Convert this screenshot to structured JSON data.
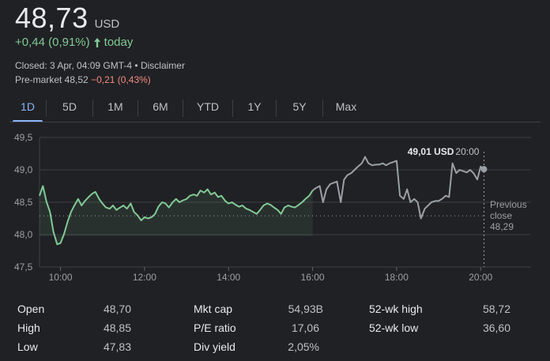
{
  "quote": {
    "price": "48,73",
    "currency": "USD",
    "change": "+0,44 (0,91%)",
    "change_period": "today",
    "closed_text": "Closed: 3 Apr, 04:09 GMT-4 • Disclaimer",
    "premarket_label": "Pre-market 48,52",
    "premarket_change": "−0,21 (0,43%)"
  },
  "tabs": [
    {
      "label": "1D",
      "active": true
    },
    {
      "label": "5D",
      "active": false
    },
    {
      "label": "1M",
      "active": false
    },
    {
      "label": "6M",
      "active": false
    },
    {
      "label": "YTD",
      "active": false
    },
    {
      "label": "1Y",
      "active": false
    },
    {
      "label": "5Y",
      "active": false
    },
    {
      "label": "Max",
      "active": false
    }
  ],
  "tooltip": {
    "value": "49,01 USD",
    "time": "20:00"
  },
  "previous_close": {
    "line1": "Previous",
    "line2": "close",
    "value": "48,29"
  },
  "colors": {
    "up": "#81c995",
    "down": "#f28b82",
    "accent": "#8ab4f8",
    "after_hours": "#9aa0a6"
  },
  "chart_data": {
    "type": "line",
    "ylim": [
      47.5,
      49.5
    ],
    "yticks": [
      "49,5",
      "49,0",
      "48,5",
      "48,0",
      "47,5"
    ],
    "ytick_values": [
      49.5,
      49.0,
      48.5,
      48.0,
      47.5
    ],
    "xticks": [
      "10:00",
      "12:00",
      "14:00",
      "16:00",
      "18:00",
      "20:00"
    ],
    "xtick_values": [
      10,
      12,
      14,
      16,
      18,
      20
    ],
    "xlim": [
      9.5,
      21.2
    ],
    "previous_close": 48.29,
    "series": [
      {
        "segment": "regular",
        "points": [
          [
            9.5,
            48.6
          ],
          [
            9.58,
            48.75
          ],
          [
            9.67,
            48.5
          ],
          [
            9.75,
            48.35
          ],
          [
            9.83,
            48.05
          ],
          [
            9.92,
            47.85
          ],
          [
            10.0,
            47.87
          ],
          [
            10.08,
            48.0
          ],
          [
            10.17,
            48.2
          ],
          [
            10.25,
            48.35
          ],
          [
            10.33,
            48.45
          ],
          [
            10.42,
            48.55
          ],
          [
            10.5,
            48.45
          ],
          [
            10.58,
            48.52
          ],
          [
            10.67,
            48.58
          ],
          [
            10.75,
            48.63
          ],
          [
            10.83,
            48.66
          ],
          [
            10.92,
            48.55
          ],
          [
            11.0,
            48.48
          ],
          [
            11.08,
            48.42
          ],
          [
            11.17,
            48.4
          ],
          [
            11.25,
            48.45
          ],
          [
            11.33,
            48.38
          ],
          [
            11.42,
            48.42
          ],
          [
            11.5,
            48.45
          ],
          [
            11.58,
            48.4
          ],
          [
            11.67,
            48.48
          ],
          [
            11.75,
            48.35
          ],
          [
            11.83,
            48.3
          ],
          [
            11.92,
            48.22
          ],
          [
            12.0,
            48.27
          ],
          [
            12.08,
            48.25
          ],
          [
            12.17,
            48.27
          ],
          [
            12.25,
            48.32
          ],
          [
            12.33,
            48.43
          ],
          [
            12.42,
            48.5
          ],
          [
            12.5,
            48.48
          ],
          [
            12.58,
            48.42
          ],
          [
            12.67,
            48.5
          ],
          [
            12.75,
            48.55
          ],
          [
            12.83,
            48.5
          ],
          [
            12.92,
            48.53
          ],
          [
            13.0,
            48.55
          ],
          [
            13.08,
            48.6
          ],
          [
            13.17,
            48.62
          ],
          [
            13.25,
            48.6
          ],
          [
            13.33,
            48.68
          ],
          [
            13.42,
            48.65
          ],
          [
            13.5,
            48.7
          ],
          [
            13.58,
            48.62
          ],
          [
            13.67,
            48.65
          ],
          [
            13.75,
            48.58
          ],
          [
            13.83,
            48.6
          ],
          [
            13.92,
            48.52
          ],
          [
            14.0,
            48.48
          ],
          [
            14.08,
            48.5
          ],
          [
            14.17,
            48.46
          ],
          [
            14.25,
            48.43
          ],
          [
            14.33,
            48.45
          ],
          [
            14.42,
            48.4
          ],
          [
            14.5,
            48.38
          ],
          [
            14.58,
            48.35
          ],
          [
            14.67,
            48.32
          ],
          [
            14.75,
            48.38
          ],
          [
            14.83,
            48.45
          ],
          [
            14.92,
            48.48
          ],
          [
            15.0,
            48.46
          ],
          [
            15.08,
            48.42
          ],
          [
            15.17,
            48.38
          ],
          [
            15.25,
            48.32
          ],
          [
            15.33,
            48.42
          ],
          [
            15.42,
            48.45
          ],
          [
            15.5,
            48.43
          ],
          [
            15.58,
            48.42
          ],
          [
            15.67,
            48.46
          ],
          [
            15.75,
            48.5
          ],
          [
            15.83,
            48.55
          ],
          [
            15.92,
            48.6
          ],
          [
            16.0,
            48.68
          ]
        ]
      },
      {
        "segment": "after_hours",
        "points": [
          [
            16.0,
            48.68
          ],
          [
            16.08,
            48.72
          ],
          [
            16.17,
            48.75
          ],
          [
            16.25,
            48.5
          ],
          [
            16.33,
            48.7
          ],
          [
            16.42,
            48.78
          ],
          [
            16.5,
            48.8
          ],
          [
            16.58,
            48.82
          ],
          [
            16.67,
            48.5
          ],
          [
            16.75,
            48.85
          ],
          [
            16.83,
            48.92
          ],
          [
            16.92,
            48.95
          ],
          [
            17.0,
            49.0
          ],
          [
            17.08,
            49.05
          ],
          [
            17.17,
            49.1
          ],
          [
            17.25,
            49.2
          ],
          [
            17.33,
            49.1
          ],
          [
            17.42,
            49.07
          ],
          [
            17.5,
            49.08
          ],
          [
            17.58,
            49.08
          ],
          [
            17.67,
            49.1
          ],
          [
            17.75,
            49.07
          ],
          [
            17.83,
            49.1
          ],
          [
            17.92,
            49.12
          ],
          [
            18.0,
            49.14
          ],
          [
            18.08,
            48.6
          ],
          [
            18.17,
            48.55
          ],
          [
            18.25,
            48.7
          ],
          [
            18.33,
            48.5
          ],
          [
            18.42,
            48.55
          ],
          [
            18.5,
            48.5
          ],
          [
            18.58,
            48.25
          ],
          [
            18.67,
            48.4
          ],
          [
            18.75,
            48.45
          ],
          [
            18.83,
            48.5
          ],
          [
            18.92,
            48.52
          ],
          [
            19.0,
            48.52
          ],
          [
            19.08,
            48.55
          ],
          [
            19.17,
            48.6
          ],
          [
            19.25,
            48.58
          ],
          [
            19.33,
            49.1
          ],
          [
            19.42,
            48.95
          ],
          [
            19.5,
            49.0
          ],
          [
            19.58,
            48.98
          ],
          [
            19.67,
            48.96
          ],
          [
            19.75,
            49.0
          ],
          [
            19.83,
            48.95
          ],
          [
            19.92,
            48.85
          ],
          [
            20.0,
            49.05
          ],
          [
            20.08,
            49.01
          ]
        ]
      }
    ]
  },
  "stats": {
    "open": {
      "label": "Open",
      "value": "48,70"
    },
    "high": {
      "label": "High",
      "value": "48,85"
    },
    "low": {
      "label": "Low",
      "value": "47,83"
    },
    "mktcap": {
      "label": "Mkt cap",
      "value": "54,93B"
    },
    "pe": {
      "label": "P/E ratio",
      "value": "17,06"
    },
    "div": {
      "label": "Div yield",
      "value": "2,05%"
    },
    "wkhigh": {
      "label": "52-wk high",
      "value": "58,72"
    },
    "wklow": {
      "label": "52-wk low",
      "value": "36,60"
    }
  }
}
